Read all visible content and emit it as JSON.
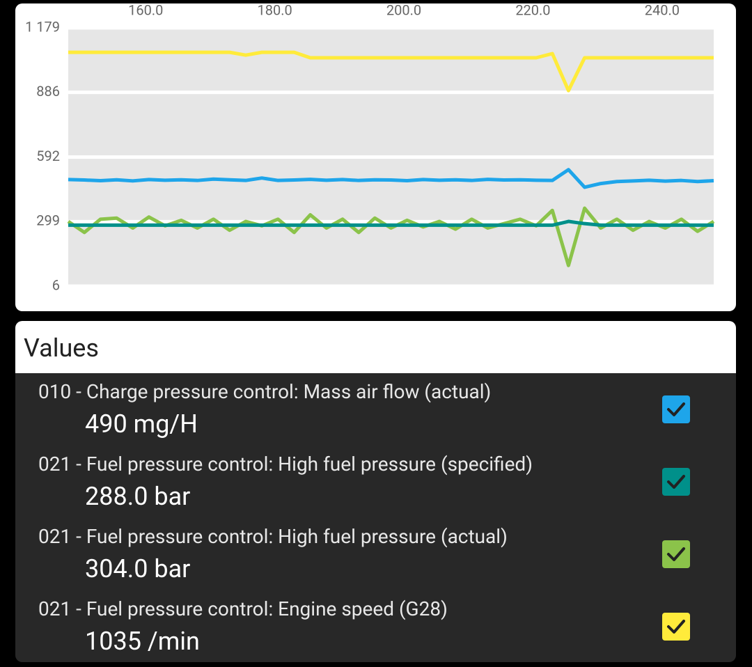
{
  "chart_data": {
    "type": "line",
    "x": [
      148,
      150.5,
      153,
      155.5,
      158,
      160.5,
      163,
      165.5,
      168,
      170.5,
      173,
      175.5,
      178,
      180.5,
      183,
      185.5,
      188,
      190.5,
      193,
      195.5,
      198,
      200.5,
      203,
      205.5,
      208,
      210.5,
      213,
      215.5,
      218,
      220.5,
      223,
      225.5,
      228,
      230.5,
      233,
      235.5,
      238,
      240.5,
      243,
      245.5,
      248
    ],
    "xlim": [
      148,
      248
    ],
    "xticks": [
      {
        "value": 160,
        "label": "160.0"
      },
      {
        "value": 180,
        "label": "180.0"
      },
      {
        "value": 200,
        "label": "200.0"
      },
      {
        "value": 220,
        "label": "220.0"
      },
      {
        "value": 240,
        "label": "240.0"
      }
    ],
    "ylim": [
      6,
      1179
    ],
    "yticks": [
      {
        "value": 1179,
        "label": "1 179"
      },
      886,
      592,
      299,
      6
    ],
    "grid": true,
    "series": [
      {
        "name": "010 - Charge pressure control: Mass air flow (actual)",
        "color": "#1ea5ea",
        "values": [
          490,
          488,
          485,
          489,
          484,
          490,
          487,
          489,
          486,
          492,
          489,
          486,
          497,
          486,
          488,
          491,
          487,
          490,
          486,
          489,
          488,
          485,
          490,
          487,
          489,
          486,
          491,
          488,
          489,
          487,
          486,
          535,
          455,
          472,
          481,
          484,
          487,
          483,
          486,
          481,
          485
        ]
      },
      {
        "name": "021 - Fuel pressure control: High fuel pressure (specified)",
        "color": "#00908a",
        "values": [
          283,
          283,
          283,
          283,
          283,
          283,
          283,
          283,
          283,
          283,
          283,
          283,
          283,
          283,
          283,
          283,
          283,
          283,
          283,
          283,
          283,
          283,
          283,
          283,
          283,
          283,
          283,
          283,
          283,
          283,
          283,
          300,
          290,
          283,
          283,
          283,
          283,
          283,
          283,
          283,
          283
        ]
      },
      {
        "name": "021 - Fuel pressure control: High fuel pressure (actual)",
        "color": "#8bc34a",
        "values": [
          300,
          250,
          310,
          315,
          270,
          320,
          280,
          305,
          270,
          310,
          260,
          300,
          280,
          310,
          250,
          330,
          270,
          310,
          250,
          315,
          270,
          305,
          275,
          300,
          265,
          310,
          270,
          290,
          310,
          280,
          350,
          100,
          360,
          270,
          310,
          260,
          300,
          270,
          310,
          255,
          300
        ]
      },
      {
        "name": "021 - Fuel pressure control: Engine speed (G28)",
        "color": "#ffeb3b",
        "values": [
          1068,
          1068,
          1068,
          1068,
          1068,
          1068,
          1068,
          1068,
          1068,
          1068,
          1068,
          1055,
          1068,
          1068,
          1068,
          1043,
          1043,
          1043,
          1043,
          1043,
          1043,
          1043,
          1043,
          1043,
          1043,
          1043,
          1043,
          1043,
          1043,
          1043,
          1062,
          894,
          1043,
          1043,
          1043,
          1043,
          1043,
          1043,
          1043,
          1043,
          1043
        ]
      }
    ]
  },
  "values_panel": {
    "title": "Values",
    "readings": [
      "490 mg/H",
      "288.0 bar",
      "304.0 bar",
      "1035 /min"
    ]
  }
}
